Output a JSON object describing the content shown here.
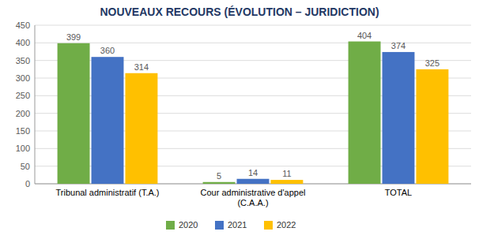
{
  "chart_data": {
    "type": "bar",
    "title": "NOUVEAUX RECOURS (ÉVOLUTION – JURIDICTION)",
    "categories": [
      "Tribunal administratif (T.A.)",
      "Cour administrative d'appel\n(C.A.A.)",
      "TOTAL"
    ],
    "series": [
      {
        "name": "2020",
        "color": "#70AD47",
        "values": [
          399,
          5,
          404
        ]
      },
      {
        "name": "2021",
        "color": "#4472C4",
        "values": [
          360,
          14,
          374
        ]
      },
      {
        "name": "2022",
        "color": "#FFC000",
        "values": [
          314,
          11,
          325
        ]
      }
    ],
    "ylim": [
      0,
      450
    ],
    "yticks": [
      0,
      50,
      100,
      150,
      200,
      250,
      300,
      350,
      400,
      450
    ],
    "grid": true,
    "data_labels": true,
    "legend": "bottom"
  }
}
